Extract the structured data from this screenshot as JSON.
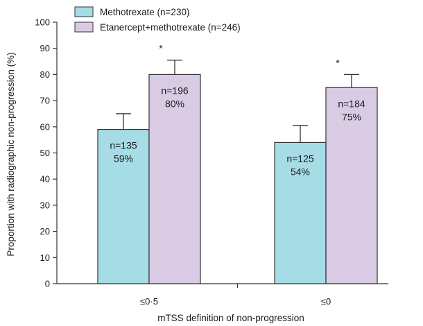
{
  "chart_data": {
    "type": "bar",
    "title": "",
    "xlabel": "mTSS definition of non-progression",
    "ylabel": "Proportion with radiographic non-progression (%)",
    "ylim": [
      0,
      100
    ],
    "yticks": [
      0,
      10,
      20,
      30,
      40,
      50,
      60,
      70,
      80,
      90,
      100
    ],
    "categories": [
      "≤0·5",
      "≤0"
    ],
    "legend_position": "top-left",
    "grid": false,
    "series": [
      {
        "name": "Methotrexate (n=230)",
        "color": "#a6dce6",
        "values": [
          59,
          54
        ],
        "error_upper": [
          65,
          60.5
        ],
        "labels_n": [
          "n=135",
          "n=125"
        ],
        "labels_pct": [
          "59%",
          "54%"
        ],
        "significance": [
          "",
          ""
        ]
      },
      {
        "name": "Etanercept+methotrexate (n=246)",
        "color": "#d8cbe3",
        "values": [
          80,
          75
        ],
        "error_upper": [
          85.5,
          80
        ],
        "labels_n": [
          "n=196",
          "n=184"
        ],
        "labels_pct": [
          "80%",
          "75%"
        ],
        "significance": [
          "*",
          "*"
        ]
      }
    ]
  }
}
